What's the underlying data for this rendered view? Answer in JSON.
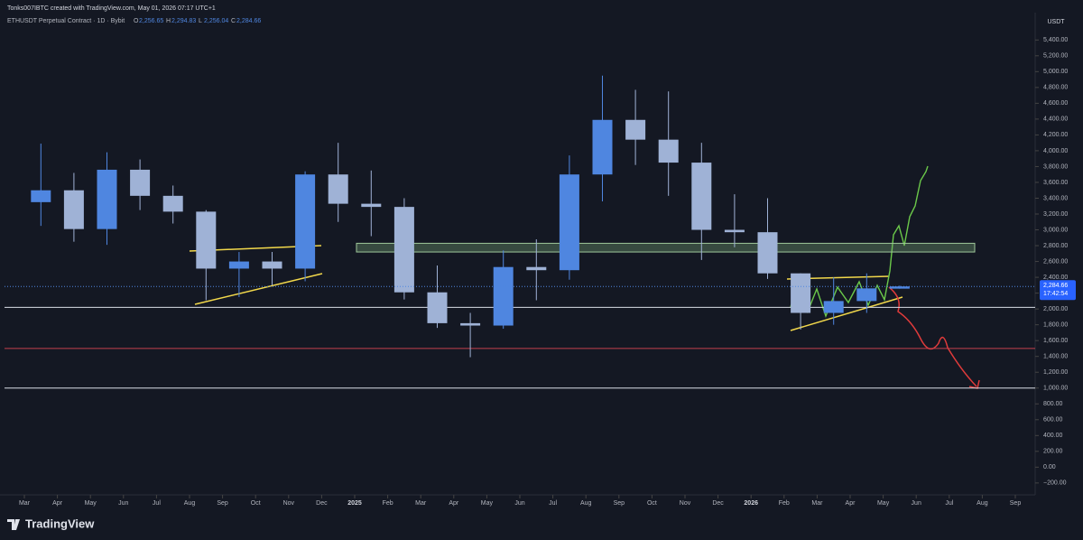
{
  "chart_data": {
    "type": "candlestick",
    "attribution": "Tonks007IBTC created with TradingView.com, May 01, 2026 07:17 UTC+1",
    "symbol": "ETHUSDT Perpetual Contract · 1D · Bybit",
    "ohlc_labels": [
      "O",
      "H",
      "L",
      "C"
    ],
    "ohlc_value_labels": [
      "2,256.65",
      "2,294.83",
      "2,256.04",
      "2,284.66"
    ],
    "currency": "USDT",
    "brand": "TradingView",
    "up_color": "#4f86e0",
    "down_color": "#9fb2d6",
    "x": [
      "2024-03",
      "2024-04",
      "2024-05",
      "2024-06",
      "2024-07",
      "2024-08",
      "2024-09",
      "2024-10",
      "2024-11",
      "2024-12",
      "2025-01",
      "2025-02",
      "2025-03",
      "2025-04",
      "2025-05",
      "2025-06",
      "2025-07",
      "2025-08",
      "2025-09",
      "2025-10",
      "2025-11",
      "2025-12",
      "2026-01",
      "2026-02",
      "2026-03",
      "2026-04",
      "2026-05"
    ],
    "open": [
      3350,
      3500,
      3010,
      3760,
      3430,
      3230,
      2510,
      2600,
      2510,
      3700,
      3330,
      3290,
      2210,
      1820,
      1790,
      2530,
      2490,
      3700,
      4390,
      4140,
      3850,
      3000,
      2970,
      2450,
      1950,
      2100,
      2256.65
    ],
    "high": [
      4090,
      3720,
      3980,
      3890,
      3560,
      3250,
      2720,
      2720,
      3740,
      4100,
      3750,
      3400,
      2550,
      1950,
      2740,
      2880,
      3940,
      4950,
      4770,
      4750,
      4100,
      3450,
      3400,
      2450,
      2400,
      2450,
      2294.83
    ],
    "low": [
      3050,
      2850,
      2810,
      3250,
      3080,
      2110,
      2150,
      2300,
      2350,
      3100,
      2920,
      2120,
      1760,
      1390,
      1750,
      2110,
      2370,
      3360,
      3820,
      3430,
      2620,
      2780,
      2380,
      1740,
      1800,
      1950,
      2256.04
    ],
    "close": [
      3500,
      3010,
      3760,
      3430,
      3230,
      2510,
      2600,
      2510,
      3700,
      3330,
      3290,
      2210,
      1820,
      1790,
      2530,
      2490,
      3700,
      4390,
      4140,
      3850,
      3000,
      2970,
      2450,
      1950,
      2100,
      2260,
      2284.66
    ],
    "xlim": [
      "2024-03",
      "2026-09"
    ],
    "xticks": [
      {
        "value": "2024-03",
        "label": "Mar"
      },
      {
        "value": "2024-04",
        "label": "Apr"
      },
      {
        "value": "2024-05",
        "label": "May"
      },
      {
        "value": "2024-06",
        "label": "Jun"
      },
      {
        "value": "2024-07",
        "label": "Jul"
      },
      {
        "value": "2024-08",
        "label": "Aug"
      },
      {
        "value": "2024-09",
        "label": "Sep"
      },
      {
        "value": "2024-10",
        "label": "Oct"
      },
      {
        "value": "2024-11",
        "label": "Nov"
      },
      {
        "value": "2024-12",
        "label": "Dec"
      },
      {
        "value": "2025-01",
        "label": "2025"
      },
      {
        "value": "2025-02",
        "label": "Feb"
      },
      {
        "value": "2025-03",
        "label": "Mar"
      },
      {
        "value": "2025-04",
        "label": "Apr"
      },
      {
        "value": "2025-05",
        "label": "May"
      },
      {
        "value": "2025-06",
        "label": "Jun"
      },
      {
        "value": "2025-07",
        "label": "Jul"
      },
      {
        "value": "2025-08",
        "label": "Aug"
      },
      {
        "value": "2025-09",
        "label": "Sep"
      },
      {
        "value": "2025-10",
        "label": "Oct"
      },
      {
        "value": "2025-11",
        "label": "Nov"
      },
      {
        "value": "2025-12",
        "label": "Dec"
      },
      {
        "value": "2026-01",
        "label": "2026"
      },
      {
        "value": "2026-02",
        "label": "Feb"
      },
      {
        "value": "2026-03",
        "label": "Mar"
      },
      {
        "value": "2026-04",
        "label": "Apr"
      },
      {
        "value": "2026-05",
        "label": "May"
      },
      {
        "value": "2026-06",
        "label": "Jun"
      },
      {
        "value": "2026-07",
        "label": "Jul"
      },
      {
        "value": "2026-08",
        "label": "Aug"
      },
      {
        "value": "2026-09",
        "label": "Sep"
      }
    ],
    "ylim": [
      -350,
      5700
    ],
    "yticks": [
      {
        "value": 5400,
        "label": "5,400.00"
      },
      {
        "value": 5200,
        "label": "5,200.00"
      },
      {
        "value": 5000,
        "label": "5,000.00"
      },
      {
        "value": 4800,
        "label": "4,800.00"
      },
      {
        "value": 4600,
        "label": "4,600.00"
      },
      {
        "value": 4400,
        "label": "4,400.00"
      },
      {
        "value": 4200,
        "label": "4,200.00"
      },
      {
        "value": 4000,
        "label": "4,000.00"
      },
      {
        "value": 3800,
        "label": "3,800.00"
      },
      {
        "value": 3600,
        "label": "3,600.00"
      },
      {
        "value": 3400,
        "label": "3,400.00"
      },
      {
        "value": 3200,
        "label": "3,200.00"
      },
      {
        "value": 3000,
        "label": "3,000.00"
      },
      {
        "value": 2800,
        "label": "2,800.00"
      },
      {
        "value": 2600,
        "label": "2,600.00"
      },
      {
        "value": 2400,
        "label": "2,400.00"
      },
      {
        "value": 2200,
        "label": "2,200.00"
      },
      {
        "value": 2000,
        "label": "2,000.00"
      },
      {
        "value": 1800,
        "label": "1,800.00"
      },
      {
        "value": 1600,
        "label": "1,600.00"
      },
      {
        "value": 1400,
        "label": "1,400.00"
      },
      {
        "value": 1200,
        "label": "1,200.00"
      },
      {
        "value": 1000,
        "label": "1,000.00"
      },
      {
        "value": 800,
        "label": "800.00"
      },
      {
        "value": 600,
        "label": "600.00"
      },
      {
        "value": 400,
        "label": "400.00"
      },
      {
        "value": 200,
        "label": "200.00"
      },
      {
        "value": 0,
        "label": "0.00"
      },
      {
        "value": -200,
        "label": "−200.00"
      }
    ],
    "levels": [
      {
        "value": 2020,
        "color": "#d9dde6"
      },
      {
        "value": 1500,
        "color": "#c2404d"
      },
      {
        "value": 1000,
        "color": "#d9dde6"
      }
    ],
    "zone": [
      2720,
      2830
    ],
    "last_price": {
      "value": 2284.66,
      "label": "2,284.66"
    },
    "countdown": "17:42:54"
  }
}
